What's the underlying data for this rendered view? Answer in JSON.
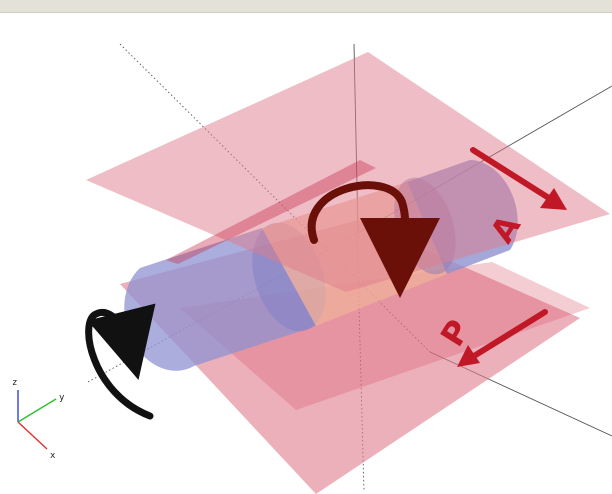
{
  "labels": {
    "top_plate_label": "A",
    "bottom_plate_label": "P"
  },
  "axis_triad": {
    "x": "x",
    "y": "y",
    "z": "z"
  },
  "colors": {
    "plate_fill": "#e07c8c",
    "cylinder_fill": "#8f91d0",
    "central_segment_fill": "#f0b29a",
    "arrow_red": "#c01826",
    "arrow_dark_red": "#6a1008",
    "arrow_black": "#111111",
    "axis_x": "#e03030",
    "axis_y": "#2fbf2f",
    "axis_z": "#3040e0"
  }
}
